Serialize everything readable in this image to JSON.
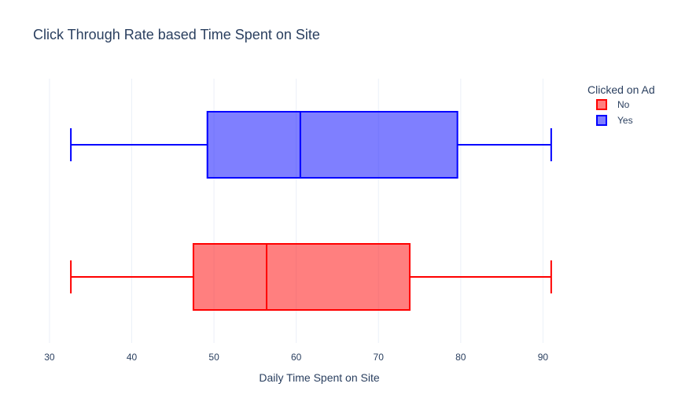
{
  "chart_data": {
    "type": "box",
    "orientation": "horizontal",
    "title": "Click Through Rate based Time Spent on Site",
    "xlabel": "Daily Time Spent on Site",
    "ylabel": "",
    "xlim": [
      28,
      93.5
    ],
    "xticks": [
      30,
      40,
      50,
      60,
      70,
      80,
      90
    ],
    "grid": true,
    "legend": {
      "title": "Clicked on Ad",
      "placement": "top-right"
    },
    "series": [
      {
        "name": "No",
        "color": "#ff0000",
        "fill": "rgba(255,0,0,0.5)",
        "min": 32.6,
        "q1": 47.5,
        "median": 56.4,
        "q3": 73.8,
        "max": 91.0
      },
      {
        "name": "Yes",
        "color": "#0000ff",
        "fill": "rgba(0,0,255,0.5)",
        "min": 32.6,
        "q1": 49.2,
        "median": 60.5,
        "q3": 79.6,
        "max": 91.0
      }
    ]
  }
}
